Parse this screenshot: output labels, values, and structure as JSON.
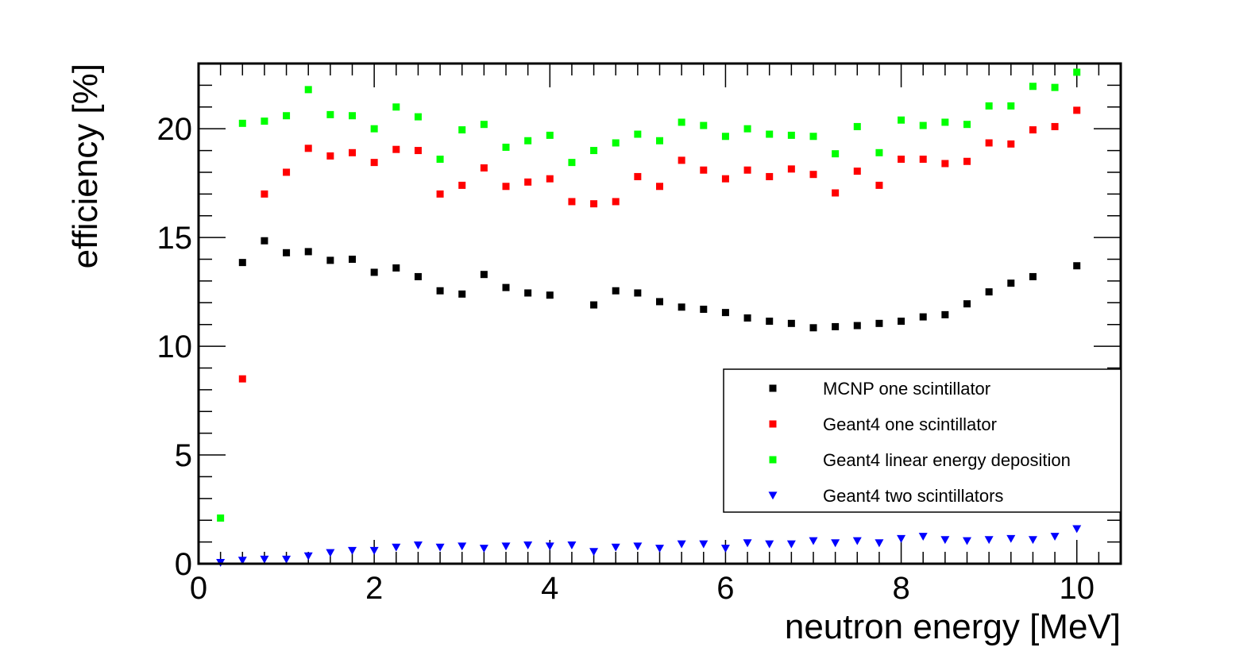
{
  "chart_data": {
    "type": "scatter",
    "title": "",
    "xlabel": "neutron energy [MeV]",
    "ylabel": "efficiency [%]",
    "xlim": [
      0,
      10.5
    ],
    "ylim": [
      0,
      23
    ],
    "x_ticks": [
      0,
      2,
      4,
      6,
      8,
      10
    ],
    "y_ticks": [
      0,
      5,
      10,
      15,
      20
    ],
    "x_tick_labels": [
      "0",
      "2",
      "4",
      "6",
      "8",
      "10"
    ],
    "y_tick_labels": [
      "0",
      "5",
      "10",
      "15",
      "20"
    ],
    "grid": false,
    "legend_position": "bottom-right",
    "x": [
      0.25,
      0.5,
      0.75,
      1.0,
      1.25,
      1.5,
      1.75,
      2.0,
      2.25,
      2.5,
      2.75,
      3.0,
      3.25,
      3.5,
      3.75,
      4.0,
      4.25,
      4.5,
      4.75,
      5.0,
      5.25,
      5.5,
      5.75,
      6.0,
      6.25,
      6.5,
      6.75,
      7.0,
      7.25,
      7.5,
      7.75,
      8.0,
      8.25,
      8.5,
      8.75,
      9.0,
      9.25,
      9.5,
      9.75,
      10.0
    ],
    "series": [
      {
        "name": "MCNP one scintillator",
        "color": "#000000",
        "marker": "square",
        "values": [
          null,
          13.85,
          14.85,
          14.3,
          14.35,
          13.95,
          14.0,
          13.4,
          13.6,
          13.2,
          12.55,
          12.4,
          13.3,
          12.7,
          12.45,
          12.35,
          null,
          11.9,
          12.55,
          12.45,
          12.05,
          11.8,
          11.7,
          11.55,
          11.3,
          11.15,
          11.05,
          10.85,
          10.9,
          10.95,
          11.05,
          11.15,
          11.35,
          11.45,
          11.95,
          12.5,
          12.9,
          13.2,
          null,
          13.7
        ]
      },
      {
        "name": "Geant4 one scintillator",
        "color": "#ff0000",
        "marker": "square",
        "values": [
          null,
          8.5,
          17.0,
          18.0,
          19.1,
          18.75,
          18.9,
          18.45,
          19.05,
          19.0,
          17.0,
          17.4,
          18.2,
          17.35,
          17.55,
          17.7,
          16.65,
          16.55,
          16.65,
          17.8,
          17.35,
          18.55,
          18.1,
          17.7,
          18.1,
          17.8,
          18.15,
          17.9,
          17.05,
          18.05,
          17.4,
          18.6,
          18.6,
          18.4,
          18.5,
          19.35,
          19.3,
          19.95,
          20.1,
          20.85
        ]
      },
      {
        "name": "Geant4 linear energy deposition",
        "color": "#00ff00",
        "marker": "square",
        "values": [
          2.1,
          20.25,
          20.35,
          20.6,
          21.8,
          20.65,
          20.6,
          20.0,
          21.0,
          20.55,
          18.6,
          19.95,
          20.2,
          19.15,
          19.45,
          19.7,
          18.45,
          19.0,
          19.35,
          19.75,
          19.45,
          20.3,
          20.15,
          19.65,
          20.0,
          19.75,
          19.7,
          19.65,
          18.85,
          20.1,
          18.9,
          20.4,
          20.15,
          20.3,
          20.2,
          21.05,
          21.05,
          21.95,
          21.9,
          22.6
        ]
      },
      {
        "name": "Geant4 two scintillators",
        "color": "#0000ff",
        "marker": "triangle-down",
        "values": [
          0.05,
          0.15,
          0.2,
          0.2,
          0.35,
          0.5,
          0.6,
          0.6,
          0.75,
          0.85,
          0.75,
          0.8,
          0.7,
          0.8,
          0.85,
          0.8,
          0.85,
          0.55,
          0.75,
          0.8,
          0.7,
          0.9,
          0.9,
          0.7,
          0.95,
          0.9,
          0.9,
          1.05,
          0.95,
          1.05,
          0.95,
          1.15,
          1.25,
          1.1,
          1.05,
          1.1,
          1.15,
          1.1,
          1.25,
          1.6
        ]
      }
    ]
  }
}
